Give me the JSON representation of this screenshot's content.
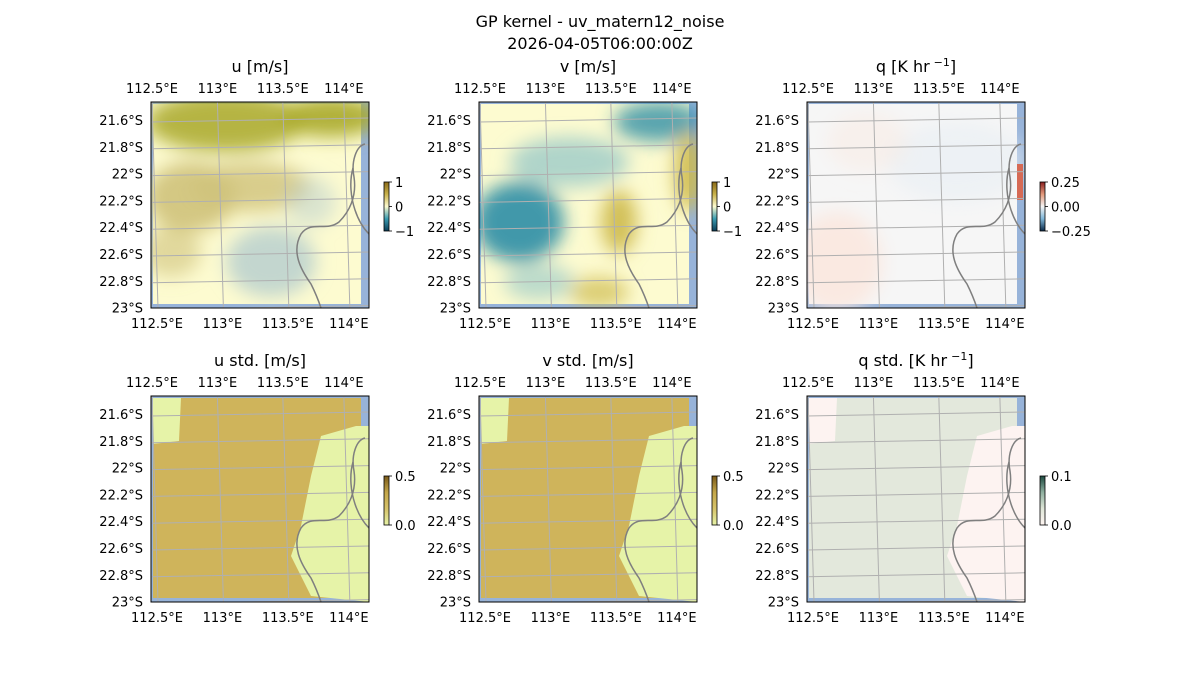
{
  "figure": {
    "title": "GP kernel - uv_matern12_noise",
    "subtitle": "2026-04-05T06:00:00Z"
  },
  "chart_data": [
    {
      "type": "heatmap",
      "id": "u",
      "title": "u [m/s]",
      "x_ticks": [
        "112.5°E",
        "113°E",
        "113.5°E",
        "114°E"
      ],
      "y_ticks": [
        "21.6°S",
        "21.8°S",
        "22°S",
        "22.2°S",
        "22.4°S",
        "22.6°S",
        "22.8°S",
        "23°S"
      ],
      "colorbar": {
        "ticks": [
          "1",
          "0",
          "−1"
        ],
        "range": [
          -1,
          1
        ],
        "colors": [
          "#0b3d57",
          "#3a9bb0",
          "#fdfbd0",
          "#c9b24c",
          "#8a6a18"
        ]
      },
      "field_colors": [
        "#fdfbd0",
        "#cfc27a",
        "#a9a829",
        "#b9d0cf"
      ]
    },
    {
      "type": "heatmap",
      "id": "v",
      "title": "v [m/s]",
      "x_ticks": [
        "112.5°E",
        "113°E",
        "113.5°E",
        "114°E"
      ],
      "y_ticks": [
        "21.6°S",
        "21.8°S",
        "22°S",
        "22.2°S",
        "22.4°S",
        "22.6°S",
        "22.8°S",
        "23°S"
      ],
      "colorbar": {
        "ticks": [
          "1",
          "0",
          "−1"
        ],
        "range": [
          -1,
          1
        ],
        "colors": [
          "#0b3d57",
          "#3a9bb0",
          "#fdfbd0",
          "#c9b24c",
          "#8a6a18"
        ]
      },
      "field_colors": [
        "#fdfbd0",
        "#2f8ea6",
        "#8fc4c8",
        "#cdb94a"
      ]
    },
    {
      "type": "heatmap",
      "id": "q",
      "title": "q [K hr",
      "title_sup": "−1",
      "title_end": "]",
      "x_ticks": [
        "112.5°E",
        "113°E",
        "113.5°E",
        "114°E"
      ],
      "y_ticks": [
        "21.6°S",
        "21.8°S",
        "22°S",
        "22.2°S",
        "22.4°S",
        "22.6°S",
        "22.8°S",
        "23°S"
      ],
      "colorbar": {
        "ticks": [
          "0.25",
          "0.00",
          "−0.25"
        ],
        "range": [
          -0.25,
          0.25
        ],
        "colors": [
          "#0b2a4a",
          "#7fb6d8",
          "#f5f5f5",
          "#e39a7c",
          "#8a1f1f"
        ]
      },
      "field_colors": [
        "#f6f6f6",
        "#fbe6dc",
        "#e7eff4",
        "#d66a55"
      ]
    },
    {
      "type": "heatmap",
      "id": "u_std",
      "title": "u std. [m/s]",
      "x_ticks": [
        "112.5°E",
        "113°E",
        "113.5°E",
        "114°E"
      ],
      "y_ticks": [
        "21.6°S",
        "21.8°S",
        "22°S",
        "22.2°S",
        "22.4°S",
        "22.6°S",
        "22.8°S",
        "23°S"
      ],
      "colorbar": {
        "ticks": [
          "0.5",
          "0.0"
        ],
        "range": [
          0,
          0.5
        ],
        "colors": [
          "#e6f3a8",
          "#d6c36a",
          "#c3a64a",
          "#7a5a1a"
        ]
      },
      "field_colors": [
        "#cfb45b",
        "#e6f3a8"
      ]
    },
    {
      "type": "heatmap",
      "id": "v_std",
      "title": "v std. [m/s]",
      "x_ticks": [
        "112.5°E",
        "113°E",
        "113.5°E",
        "114°E"
      ],
      "y_ticks": [
        "21.6°S",
        "21.8°S",
        "22°S",
        "22.2°S",
        "22.4°S",
        "22.6°S",
        "22.8°S",
        "23°S"
      ],
      "colorbar": {
        "ticks": [
          "0.5",
          "0.0"
        ],
        "range": [
          0,
          0.5
        ],
        "colors": [
          "#e6f3a8",
          "#d6c36a",
          "#c3a64a",
          "#7a5a1a"
        ]
      },
      "field_colors": [
        "#cfb45b",
        "#e6f3a8"
      ]
    },
    {
      "type": "heatmap",
      "id": "q_std",
      "title": "q std. [K hr",
      "title_sup": "−1",
      "title_end": "]",
      "x_ticks": [
        "112.5°E",
        "113°E",
        "113.5°E",
        "114°E"
      ],
      "y_ticks": [
        "21.6°S",
        "21.8°S",
        "22°S",
        "22.2°S",
        "22.4°S",
        "22.6°S",
        "22.8°S",
        "23°S"
      ],
      "colorbar": {
        "ticks": [
          "0.1",
          "0.0"
        ],
        "range": [
          0,
          0.1
        ],
        "colors": [
          "#fff5f2",
          "#dfe6d8",
          "#8fb0a0",
          "#1d4a40"
        ]
      },
      "field_colors": [
        "#e3e8dc",
        "#fdf3f1"
      ]
    }
  ],
  "colors": {
    "grid": "#b0b0b0",
    "coast": "#7f7f7f",
    "ocean_edge": "#97b3d9"
  }
}
